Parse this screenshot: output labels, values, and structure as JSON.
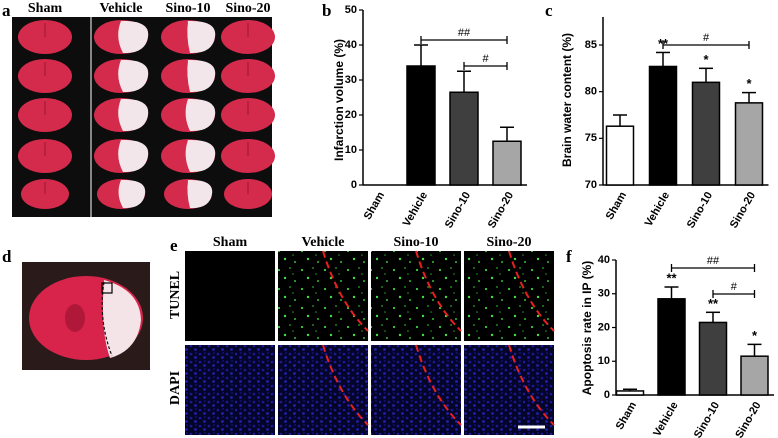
{
  "panels": {
    "a": {
      "label": "a",
      "columns": [
        "Sham",
        "Vehicle",
        "Sino-10",
        "Sino-20"
      ]
    },
    "d": {
      "label": "d"
    },
    "e": {
      "label": "e",
      "columns": [
        "Sham",
        "Vehicle",
        "Sino-10",
        "Sino-20"
      ],
      "rows": [
        "TUNEL",
        "DAPI"
      ]
    }
  },
  "chart_data": [
    {
      "type": "bar",
      "panel_label": "b",
      "y_label": "Infarction volume (%)",
      "categories": [
        "Sham",
        "Vehicle",
        "Sino-10",
        "Sino-20"
      ],
      "values": [
        0,
        34,
        26.5,
        12.5
      ],
      "errors": [
        0,
        6,
        6,
        4
      ],
      "colors": [
        "#ffffff",
        "#000000",
        "#3f3f3f",
        "#a6a6a6"
      ],
      "ylim": [
        0,
        50
      ],
      "yticks": [
        0,
        10,
        20,
        30,
        40,
        50
      ],
      "significance": [
        null,
        null,
        null,
        null
      ],
      "comparisons": [
        {
          "label": "##",
          "between": [
            "Vehicle",
            "Sino-20"
          ]
        },
        {
          "label": "#",
          "between": [
            "Sino-10",
            "Sino-20"
          ]
        }
      ]
    },
    {
      "type": "bar",
      "panel_label": "c",
      "y_label": "Brain water content (%)",
      "categories": [
        "Sham",
        "Vehicle",
        "Sino-10",
        "Sino-20"
      ],
      "values": [
        76.3,
        82.7,
        81,
        78.8
      ],
      "errors": [
        1.2,
        1.5,
        1.5,
        1.1
      ],
      "colors": [
        "#ffffff",
        "#000000",
        "#3f3f3f",
        "#a6a6a6"
      ],
      "ylim": [
        70,
        88
      ],
      "yticks": [
        70,
        75,
        80,
        85
      ],
      "significance": [
        null,
        "**",
        "*",
        "*"
      ],
      "comparisons": [
        {
          "label": "#",
          "between": [
            "Vehicle",
            "Sino-20"
          ]
        }
      ]
    },
    {
      "type": "bar",
      "panel_label": "f",
      "y_label": "Apoptosis rate in IP (%)",
      "categories": [
        "Sham",
        "Vehicle",
        "Sino-10",
        "Sino-20"
      ],
      "values": [
        1.2,
        28.5,
        21.5,
        11.5
      ],
      "errors": [
        0.5,
        3.5,
        3,
        3.5
      ],
      "colors": [
        "#ffffff",
        "#000000",
        "#3f3f3f",
        "#a6a6a6"
      ],
      "ylim": [
        0,
        40
      ],
      "yticks": [
        0,
        10,
        20,
        30,
        40
      ],
      "significance": [
        null,
        "**",
        "**",
        "*"
      ],
      "comparisons": [
        {
          "label": "##",
          "between": [
            "Vehicle",
            "Sino-20"
          ]
        },
        {
          "label": "#",
          "between": [
            "Sino-10",
            "Sino-20"
          ]
        }
      ]
    }
  ]
}
